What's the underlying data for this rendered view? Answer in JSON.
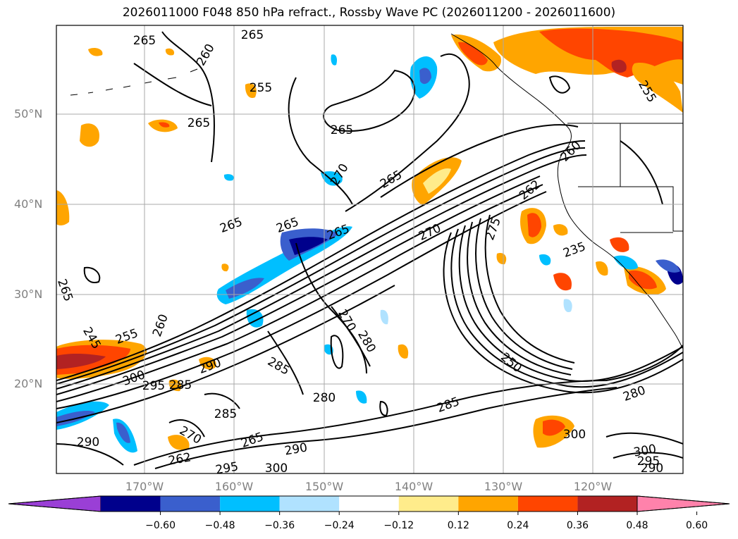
{
  "title": "2026011000 F048 850 hPa refract., Rossby Wave PC (2026011200 - 2026011600)",
  "lat_labels": [
    "50°N",
    "40°N",
    "30°N",
    "20°N"
  ],
  "lon_labels": [
    "170°W",
    "160°W",
    "150°W",
    "140°W",
    "130°W",
    "120°W"
  ],
  "colorbar": {
    "ticks": [
      "−0.60",
      "−0.48",
      "−0.36",
      "−0.24",
      "−0.12",
      "0.12",
      "0.24",
      "0.36",
      "0.48",
      "0.60"
    ],
    "colors": [
      "#9a3fd6",
      "#00008c",
      "#3a5fcd",
      "#00bfff",
      "#b0e2ff",
      "#ffffff",
      "#ffec8b",
      "#ffa500",
      "#ff4500",
      "#b22222",
      "#ff82ab"
    ]
  },
  "contour_labels": [
    "265",
    "265",
    "260",
    "255",
    "265",
    "265",
    "265",
    "270",
    "265",
    "265",
    "265",
    "270",
    "275",
    "262",
    "260",
    "255",
    "235",
    "265",
    "245",
    "255",
    "260",
    "270",
    "280",
    "300",
    "295",
    "285",
    "290",
    "285",
    "280",
    "285",
    "250",
    "285",
    "290",
    "270",
    "265",
    "290",
    "300",
    "295",
    "262",
    "300",
    "280",
    "300",
    "295",
    "290"
  ]
}
